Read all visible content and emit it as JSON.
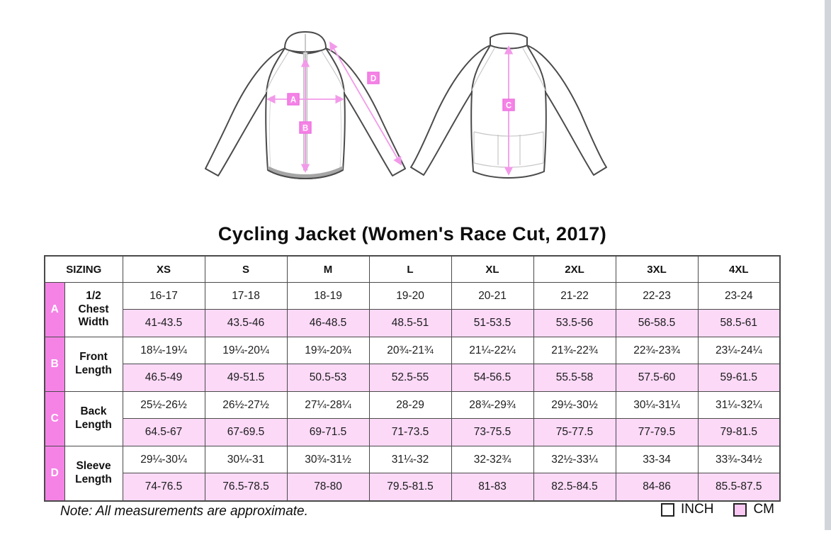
{
  "title": "Cycling Jacket (Women's Race Cut, 2017)",
  "note": "Note: All measurements are approximate.",
  "legend": {
    "inch_label": "INCH",
    "cm_label": "CM"
  },
  "diagram": {
    "labels": {
      "A": "A",
      "B": "B",
      "C": "C",
      "D": "D"
    },
    "views": {
      "front": "front-jacket",
      "back": "back-jacket"
    }
  },
  "table": {
    "header": {
      "sizing": "SIZING",
      "sizes": [
        "XS",
        "S",
        "M",
        "L",
        "XL",
        "2XL",
        "3XL",
        "4XL"
      ]
    },
    "rows": [
      {
        "letter": "A",
        "label": "1/2\nChest\nWidth",
        "inch": [
          "16-17",
          "17-18",
          "18-19",
          "19-20",
          "20-21",
          "21-22",
          "22-23",
          "23-24"
        ],
        "cm": [
          "41-43.5",
          "43.5-46",
          "46-48.5",
          "48.5-51",
          "51-53.5",
          "53.5-56",
          "56-58.5",
          "58.5-61"
        ]
      },
      {
        "letter": "B",
        "label": "Front\nLength",
        "inch": [
          "18¼-19¼",
          "19¼-20¼",
          "19¾-20¾",
          "20¾-21¾",
          "21¼-22¼",
          "21¾-22¾",
          "22¾-23¾",
          "23¼-24¼"
        ],
        "cm": [
          "46.5-49",
          "49-51.5",
          "50.5-53",
          "52.5-55",
          "54-56.5",
          "55.5-58",
          "57.5-60",
          "59-61.5"
        ]
      },
      {
        "letter": "C",
        "label": "Back\nLength",
        "inch": [
          "25½-26½",
          "26½-27½",
          "27¼-28¼",
          "28-29",
          "28¾-29¾",
          "29½-30½",
          "30¼-31¼",
          "31¼-32¼"
        ],
        "cm": [
          "64.5-67",
          "67-69.5",
          "69-71.5",
          "71-73.5",
          "73-75.5",
          "75-77.5",
          "77-79.5",
          "79-81.5"
        ]
      },
      {
        "letter": "D",
        "label": "Sleeve\nLength",
        "inch": [
          "29¼-30¼",
          "30¼-31",
          "30¾-31½",
          "31¼-32",
          "32-32¾",
          "32½-33¼",
          "33-34",
          "33¾-34½"
        ],
        "cm": [
          "74-76.5",
          "76.5-78.5",
          "78-80",
          "79.5-81.5",
          "81-83",
          "82.5-84.5",
          "84-86",
          "85.5-87.5"
        ]
      }
    ]
  },
  "colors": {
    "accent_pink": "#f583e6",
    "light_pink": "#fbd9f7",
    "arrow_pink": "#f29ae9",
    "border_dark": "#4a4a4a"
  }
}
